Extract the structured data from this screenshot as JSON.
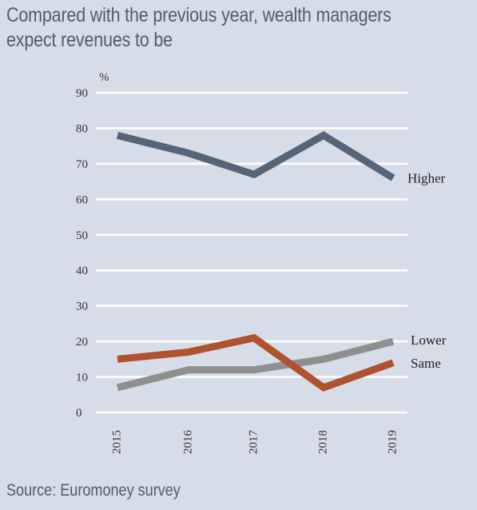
{
  "title": "Compared with the previous year, wealth managers expect revenues to be",
  "source": "Source: Euromoney survey",
  "chart_data": {
    "type": "line",
    "title": "Compared with the previous year, wealth managers expect revenues to be",
    "ylabel": "%",
    "xlabel": "",
    "x": [
      "2015",
      "2016",
      "2017",
      "2018",
      "2019"
    ],
    "ylim": [
      0,
      90
    ],
    "yticks": [
      0,
      10,
      20,
      30,
      40,
      50,
      60,
      70,
      80,
      90
    ],
    "grid": true,
    "series": [
      {
        "name": "Higher",
        "values": [
          78,
          73,
          67,
          78,
          66
        ],
        "color": "#556477"
      },
      {
        "name": "Lower",
        "values": [
          7,
          12,
          12,
          15,
          20
        ],
        "color": "#8f8f8f"
      },
      {
        "name": "Same",
        "values": [
          15,
          17,
          21,
          7,
          14
        ],
        "color": "#b0522e"
      }
    ]
  }
}
